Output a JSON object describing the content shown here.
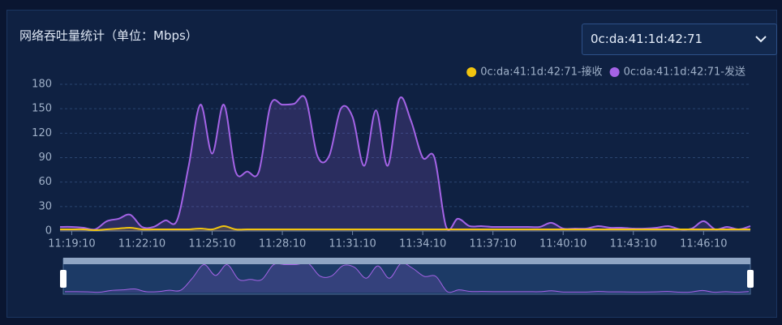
{
  "chart_data": {
    "type": "line",
    "title": "网络吞吐量统计（单位：Mbps）",
    "selector": "0c:da:41:1d:42:71",
    "x": [
      "11:18:40",
      "11:19:10",
      "11:19:40",
      "11:20:10",
      "11:20:40",
      "11:21:10",
      "11:21:40",
      "11:22:10",
      "11:22:40",
      "11:23:10",
      "11:23:40",
      "11:24:10",
      "11:24:40",
      "11:25:10",
      "11:25:40",
      "11:26:10",
      "11:26:40",
      "11:27:10",
      "11:27:40",
      "11:28:10",
      "11:28:40",
      "11:29:10",
      "11:29:40",
      "11:30:10",
      "11:30:40",
      "11:31:10",
      "11:31:40",
      "11:32:10",
      "11:32:40",
      "11:33:10",
      "11:33:40",
      "11:34:10",
      "11:34:40",
      "11:35:10",
      "11:35:40",
      "11:36:10",
      "11:36:40",
      "11:37:10",
      "11:37:40",
      "11:38:10",
      "11:38:40",
      "11:39:10",
      "11:39:40",
      "11:40:10",
      "11:40:40",
      "11:41:10",
      "11:41:40",
      "11:42:10",
      "11:42:40",
      "11:43:10",
      "11:43:40",
      "11:44:10",
      "11:44:40",
      "11:45:10",
      "11:45:40",
      "11:46:10",
      "11:46:40",
      "11:47:10",
      "11:47:40",
      "11:48:10"
    ],
    "series": [
      {
        "name": "0c:da:41:1d:42:71-接收",
        "color": "#f1c40f",
        "values": [
          2,
          2,
          2,
          1,
          2,
          3,
          4,
          2,
          2,
          2,
          2,
          2,
          3,
          2,
          6,
          2,
          2,
          2,
          2,
          2,
          2,
          2,
          2,
          2,
          2,
          2,
          2,
          2,
          2,
          2,
          2,
          2,
          2,
          2,
          2,
          2,
          2,
          2,
          2,
          2,
          2,
          2,
          2,
          2,
          2,
          2,
          2,
          2,
          2,
          2,
          2,
          2,
          2,
          2,
          2,
          2,
          2,
          2,
          2,
          2
        ]
      },
      {
        "name": "0c:da:41:1d:42:71-发送",
        "color": "#a463e6",
        "values": [
          5,
          5,
          4,
          2,
          12,
          15,
          20,
          5,
          5,
          13,
          13,
          80,
          155,
          95,
          155,
          73,
          73,
          73,
          155,
          155,
          156,
          162,
          92,
          92,
          150,
          140,
          80,
          148,
          80,
          162,
          135,
          90,
          90,
          5,
          15,
          6,
          6,
          5,
          5,
          5,
          5,
          5,
          10,
          3,
          3,
          3,
          6,
          4,
          4,
          3,
          3,
          4,
          6,
          2,
          3,
          12,
          2,
          5,
          2,
          6
        ]
      }
    ],
    "xlim": [
      "11:18:40",
      "11:48:10"
    ],
    "xticks": [
      "11:19:10",
      "11:22:10",
      "11:25:10",
      "11:28:10",
      "11:31:10",
      "11:34:10",
      "11:37:10",
      "11:40:10",
      "11:43:10",
      "11:46:10"
    ],
    "ylim": [
      0,
      180
    ],
    "yticks": [
      0,
      30,
      60,
      90,
      120,
      150,
      180
    ],
    "grid": true,
    "legend": "top-right"
  }
}
